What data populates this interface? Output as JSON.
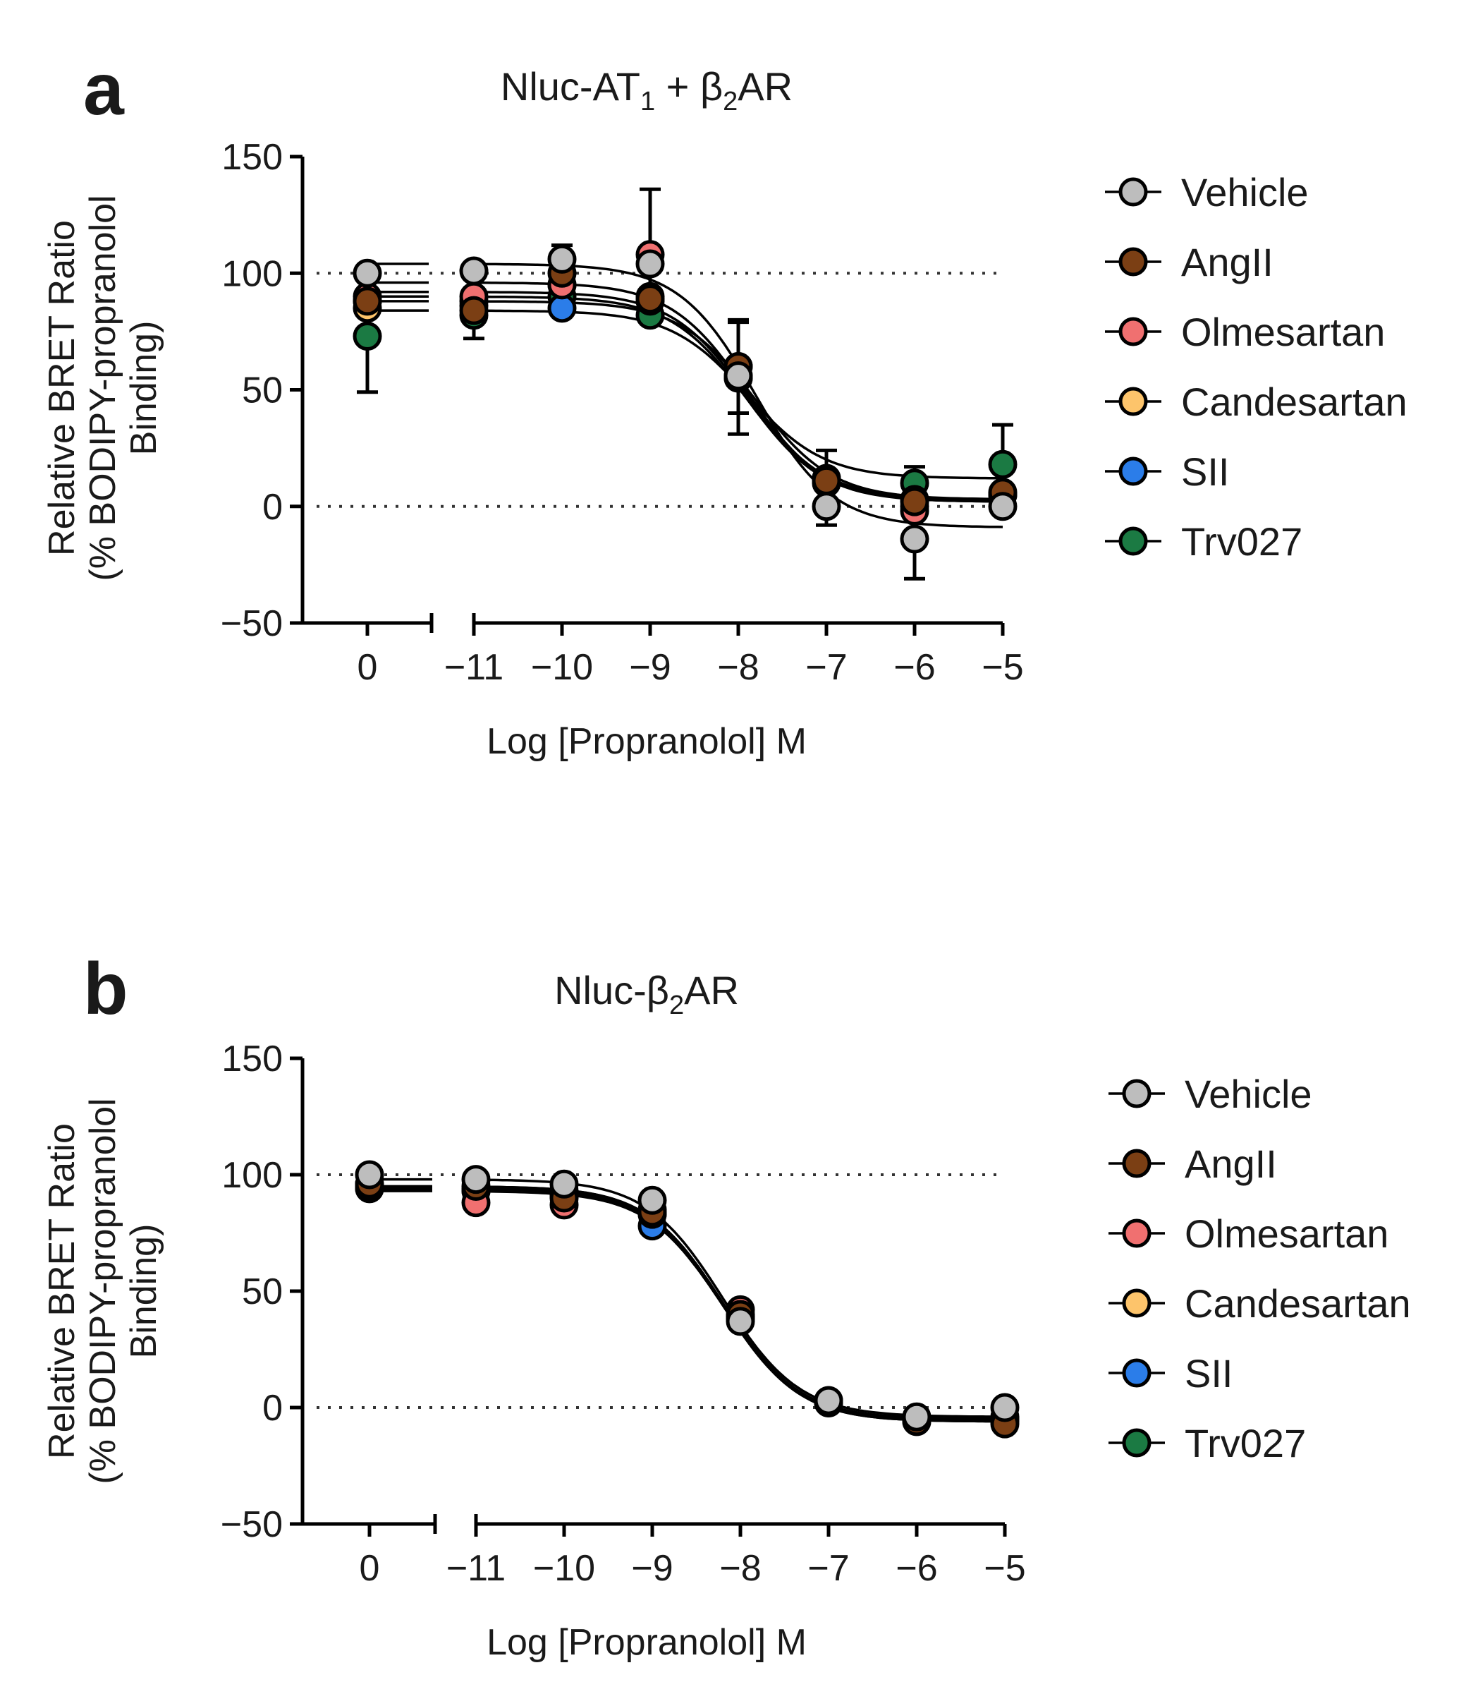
{
  "chart_data": [
    {
      "type": "scatter",
      "panel": "a",
      "title": "Nluc-AT",
      "title_sub": "1",
      "title_mid": " + β",
      "title_sub2": "2",
      "title_end": "AR",
      "xlabel": "Log [Propranolol] M",
      "ylabel_line1": "Relative BRET Ratio",
      "ylabel_line2": "(% BODIPY-propranolol",
      "ylabel_line3": "Binding)",
      "ylim": [
        -50,
        150
      ],
      "yticks": [
        -50,
        0,
        50,
        100,
        150
      ],
      "ytick_labels": [
        "−50",
        "0",
        "50",
        "100",
        "150"
      ],
      "x_break_tick": 0,
      "x_break_label": "0",
      "xticks": [
        -11,
        -10,
        -9,
        -8,
        -7,
        -6,
        -5
      ],
      "xtick_labels": [
        "−11",
        "−10",
        "−9",
        "−8",
        "−7",
        "−6",
        "−5"
      ],
      "reference_lines": [
        0,
        100
      ],
      "x": [
        -11,
        -10,
        -9,
        -8,
        -7,
        -6,
        -5
      ],
      "series": [
        {
          "name": "Vehicle",
          "color": "#bdbdbd",
          "zero": 100,
          "values": [
            101,
            106,
            104,
            56,
            0,
            -14,
            0
          ],
          "fit": {
            "top": 104,
            "bottom": -9,
            "logEC50": -7.8,
            "hill": 1
          },
          "err": {
            "zero": 0,
            "values": [
              0,
              0,
              0,
              0,
              8,
              17,
              0
            ]
          }
        },
        {
          "name": "AngII",
          "color": "#7b3f14",
          "zero": 88,
          "values": [
            84,
            100,
            89,
            60,
            11,
            2,
            6
          ],
          "fit": {
            "top": 92,
            "bottom": 3,
            "logEC50": -7.9,
            "hill": 1
          },
          "err": {
            "zero": 0,
            "values": [
              0,
              12,
              0,
              20,
              13,
              15,
              0
            ]
          }
        },
        {
          "name": "Olmesartan",
          "color": "#f07070",
          "zero": 90,
          "values": [
            90,
            95,
            108,
            60,
            12,
            -2,
            5
          ],
          "fit": {
            "top": 96,
            "bottom": 2,
            "logEC50": -7.9,
            "hill": 1
          },
          "err": {
            "zero": 0,
            "values": [
              0,
              0,
              28,
              0,
              0,
              0,
              0
            ]
          }
        },
        {
          "name": "Candesartan",
          "color": "#fdc46b",
          "zero": 85,
          "values": [
            86,
            95,
            90,
            56,
            10,
            0,
            5
          ],
          "fit": {
            "top": 90,
            "bottom": 2,
            "logEC50": -7.9,
            "hill": 1
          },
          "err": {
            "zero": 0,
            "values": [
              0,
              0,
              0,
              0,
              0,
              0,
              0
            ]
          }
        },
        {
          "name": "SII",
          "color": "#2b7de9",
          "zero": 88,
          "values": [
            88,
            85,
            88,
            55,
            12,
            3,
            5
          ],
          "fit": {
            "top": 88,
            "bottom": 3,
            "logEC50": -7.8,
            "hill": 1
          },
          "err": {
            "zero": 0,
            "values": [
              0,
              0,
              0,
              0,
              0,
              0,
              0
            ]
          }
        },
        {
          "name": "Trv027",
          "color": "#1b7a43",
          "zero": 73,
          "values": [
            82,
            90,
            82,
            55,
            12,
            10,
            18
          ],
          "fit": {
            "top": 84,
            "bottom": 12,
            "logEC50": -7.9,
            "hill": 1
          },
          "err": {
            "zero": 24,
            "values": [
              10,
              0,
              0,
              24,
              0,
              0,
              17
            ]
          }
        }
      ]
    },
    {
      "type": "scatter",
      "panel": "b",
      "title": "Nluc-β",
      "title_sub": "2",
      "title_end": "AR",
      "xlabel": "Log [Propranolol] M",
      "ylabel_line1": "Relative BRET Ratio",
      "ylabel_line2": "(% BODIPY-propranolol",
      "ylabel_line3": "Binding)",
      "ylim": [
        -50,
        150
      ],
      "yticks": [
        -50,
        0,
        50,
        100,
        150
      ],
      "ytick_labels": [
        "−50",
        "0",
        "50",
        "100",
        "150"
      ],
      "x_break_tick": 0,
      "x_break_label": "0",
      "xticks": [
        -11,
        -10,
        -9,
        -8,
        -7,
        -6,
        -5
      ],
      "xtick_labels": [
        "−11",
        "−10",
        "−9",
        "−8",
        "−7",
        "−6",
        "−5"
      ],
      "reference_lines": [
        0,
        100
      ],
      "x": [
        -11,
        -10,
        -9,
        -8,
        -7,
        -6,
        -5
      ],
      "series": [
        {
          "name": "Vehicle",
          "color": "#bdbdbd",
          "zero": 100,
          "values": [
            98,
            96,
            89,
            37,
            3,
            -4,
            0
          ],
          "fit": {
            "top": 98,
            "bottom": -4,
            "logEC50": -8.2,
            "hill": 1
          },
          "err": {
            "zero": 0,
            "values": [
              0,
              0,
              0,
              0,
              0,
              0,
              0
            ]
          }
        },
        {
          "name": "AngII",
          "color": "#7b3f14",
          "zero": 96,
          "values": [
            95,
            90,
            84,
            40,
            2,
            -6,
            -7
          ],
          "fit": {
            "top": 95,
            "bottom": -6,
            "logEC50": -8.2,
            "hill": 1
          },
          "err": {
            "zero": 0,
            "values": [
              0,
              0,
              0,
              0,
              0,
              0,
              0
            ]
          }
        },
        {
          "name": "Olmesartan",
          "color": "#f07070",
          "zero": 95,
          "values": [
            88,
            87,
            85,
            42,
            3,
            -5,
            -5
          ],
          "fit": {
            "top": 93,
            "bottom": -5,
            "logEC50": -8.2,
            "hill": 1
          },
          "err": {
            "zero": 0,
            "values": [
              0,
              0,
              0,
              0,
              0,
              0,
              0
            ]
          }
        },
        {
          "name": "Candesartan",
          "color": "#fdc46b",
          "zero": 94,
          "values": [
            93,
            92,
            83,
            39,
            2,
            -5,
            -5
          ],
          "fit": {
            "top": 94,
            "bottom": -5,
            "logEC50": -8.2,
            "hill": 1
          },
          "err": {
            "zero": 0,
            "values": [
              0,
              0,
              0,
              0,
              0,
              0,
              0
            ]
          }
        },
        {
          "name": "SII",
          "color": "#2b7de9",
          "zero": 96,
          "values": [
            94,
            91,
            78,
            39,
            2,
            -5,
            -4
          ],
          "fit": {
            "top": 95,
            "bottom": -5,
            "logEC50": -8.2,
            "hill": 1
          },
          "err": {
            "zero": 0,
            "values": [
              0,
              0,
              0,
              0,
              0,
              0,
              0
            ]
          }
        },
        {
          "name": "Trv027",
          "color": "#1b7a43",
          "zero": 94,
          "values": [
            93,
            93,
            83,
            38,
            3,
            -6,
            -6
          ],
          "fit": {
            "top": 94,
            "bottom": -6,
            "logEC50": -8.2,
            "hill": 1
          },
          "err": {
            "zero": 0,
            "values": [
              0,
              0,
              0,
              0,
              0,
              0,
              0
            ]
          }
        }
      ]
    }
  ],
  "legend": {
    "items": [
      {
        "name": "Vehicle",
        "color": "#bdbdbd"
      },
      {
        "name": "AngII",
        "color": "#7b3f14"
      },
      {
        "name": "Olmesartan",
        "color": "#f07070"
      },
      {
        "name": "Candesartan",
        "color": "#fdc46b"
      },
      {
        "name": "SII",
        "color": "#2b7de9"
      },
      {
        "name": "Trv027",
        "color": "#1b7a43"
      }
    ]
  }
}
